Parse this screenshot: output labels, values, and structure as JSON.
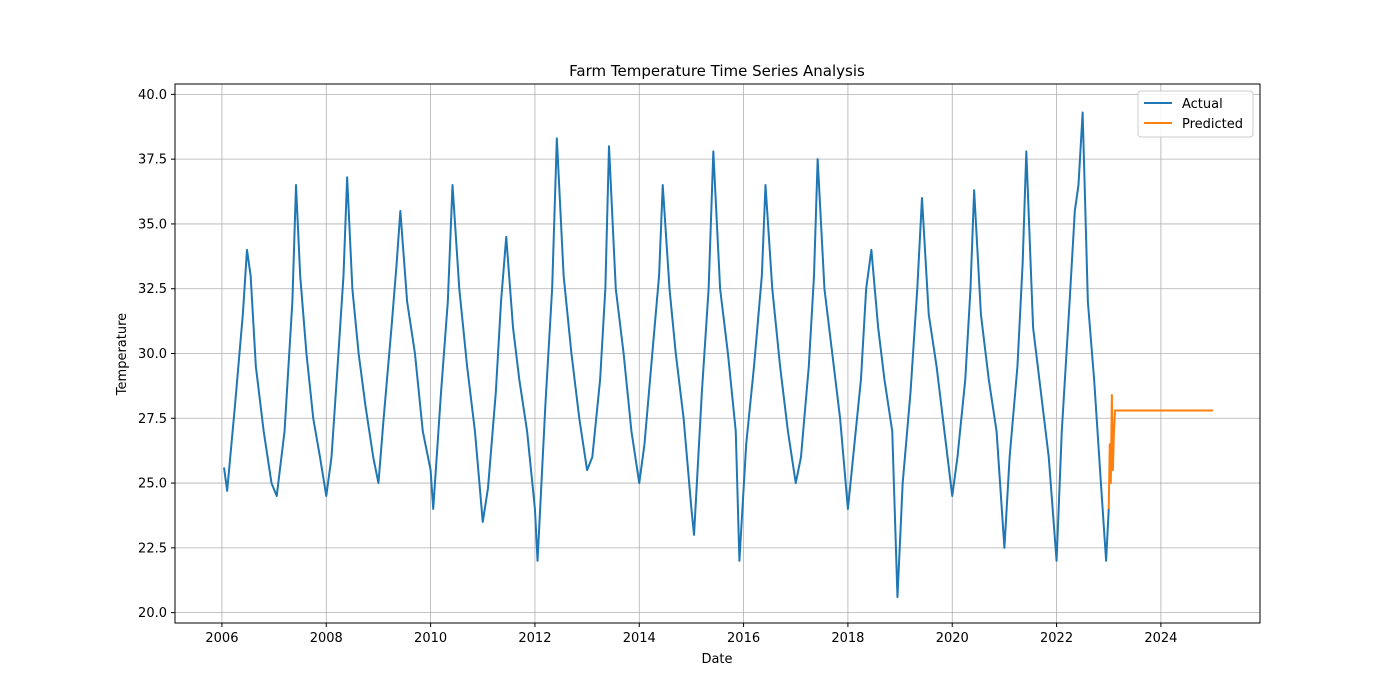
{
  "chart_data": {
    "type": "line",
    "title": "Farm Temperature Time Series Analysis",
    "xlabel": "Date",
    "ylabel": "Temperature",
    "xlim": [
      2005.1,
      2025.9
    ],
    "ylim": [
      19.6,
      40.4
    ],
    "x_ticks": [
      2006,
      2008,
      2010,
      2012,
      2014,
      2016,
      2018,
      2020,
      2022,
      2024
    ],
    "x_tick_labels": [
      "2006",
      "2008",
      "2010",
      "2012",
      "2014",
      "2016",
      "2018",
      "2020",
      "2022",
      "2024"
    ],
    "y_ticks": [
      20.0,
      22.5,
      25.0,
      27.5,
      30.0,
      32.5,
      35.0,
      37.5,
      40.0
    ],
    "y_tick_labels": [
      "20.0",
      "22.5",
      "25.0",
      "27.5",
      "30.0",
      "32.5",
      "35.0",
      "37.5",
      "40.0"
    ],
    "grid": true,
    "legend": {
      "position": "top-right",
      "entries": [
        "Actual",
        "Predicted"
      ]
    },
    "series": [
      {
        "name": "Actual",
        "color": "#1f77b4",
        "x": [
          2006.04,
          2006.1,
          2006.25,
          2006.4,
          2006.48,
          2006.55,
          2006.65,
          2006.8,
          2006.95,
          2007.05,
          2007.2,
          2007.35,
          2007.42,
          2007.5,
          2007.62,
          2007.75,
          2007.88,
          2008.0,
          2008.1,
          2008.2,
          2008.33,
          2008.4,
          2008.5,
          2008.62,
          2008.75,
          2008.9,
          2009.0,
          2009.1,
          2009.25,
          2009.35,
          2009.42,
          2009.55,
          2009.7,
          2009.85,
          2010.0,
          2010.05,
          2010.2,
          2010.33,
          2010.42,
          2010.55,
          2010.7,
          2010.85,
          2011.0,
          2011.1,
          2011.25,
          2011.35,
          2011.45,
          2011.58,
          2011.7,
          2011.85,
          2012.0,
          2012.05,
          2012.2,
          2012.33,
          2012.42,
          2012.55,
          2012.7,
          2012.85,
          2013.0,
          2013.1,
          2013.25,
          2013.35,
          2013.42,
          2013.55,
          2013.7,
          2013.85,
          2014.0,
          2014.1,
          2014.25,
          2014.38,
          2014.45,
          2014.58,
          2014.7,
          2014.85,
          2015.0,
          2015.05,
          2015.2,
          2015.33,
          2015.42,
          2015.55,
          2015.7,
          2015.85,
          2015.92,
          2016.05,
          2016.2,
          2016.35,
          2016.42,
          2016.55,
          2016.7,
          2016.85,
          2017.0,
          2017.1,
          2017.25,
          2017.35,
          2017.42,
          2017.55,
          2017.7,
          2017.85,
          2018.0,
          2018.1,
          2018.25,
          2018.35,
          2018.45,
          2018.58,
          2018.7,
          2018.85,
          2018.95,
          2019.05,
          2019.2,
          2019.33,
          2019.42,
          2019.55,
          2019.7,
          2019.85,
          2020.0,
          2020.1,
          2020.25,
          2020.35,
          2020.42,
          2020.55,
          2020.7,
          2020.85,
          2021.0,
          2021.1,
          2021.25,
          2021.35,
          2021.42,
          2021.55,
          2021.7,
          2021.85,
          2022.0,
          2022.1,
          2022.25,
          2022.35,
          2022.42,
          2022.5,
          2022.6,
          2022.72,
          2022.85,
          2022.95,
          2023.0
        ],
        "y": [
          25.6,
          24.7,
          28.0,
          31.5,
          34.0,
          33.0,
          29.5,
          27.0,
          25.0,
          24.5,
          27.0,
          32.0,
          36.5,
          33.0,
          30.0,
          27.5,
          26.0,
          24.5,
          26.0,
          29.0,
          33.0,
          36.8,
          32.5,
          30.0,
          28.0,
          26.0,
          25.0,
          27.5,
          31.0,
          33.5,
          35.5,
          32.0,
          30.0,
          27.0,
          25.5,
          24.0,
          28.5,
          32.0,
          36.5,
          32.5,
          29.5,
          27.0,
          23.5,
          24.8,
          28.5,
          32.0,
          34.5,
          31.0,
          29.0,
          27.0,
          24.0,
          22.0,
          28.0,
          32.5,
          38.3,
          33.0,
          30.0,
          27.5,
          25.5,
          26.0,
          29.0,
          32.5,
          38.0,
          32.5,
          30.0,
          27.0,
          25.0,
          26.5,
          30.0,
          33.0,
          36.5,
          32.5,
          30.0,
          27.5,
          24.0,
          23.0,
          28.5,
          32.5,
          37.8,
          32.5,
          30.0,
          27.0,
          22.0,
          26.5,
          29.5,
          33.0,
          36.5,
          32.5,
          29.5,
          27.0,
          25.0,
          26.0,
          29.5,
          33.0,
          37.5,
          32.5,
          30.0,
          27.5,
          24.0,
          26.0,
          29.0,
          32.5,
          34.0,
          31.0,
          29.0,
          27.0,
          20.6,
          25.0,
          28.5,
          32.5,
          36.0,
          31.5,
          29.5,
          27.0,
          24.5,
          26.0,
          29.0,
          32.5,
          36.3,
          31.5,
          29.0,
          27.0,
          22.5,
          26.0,
          29.5,
          33.5,
          37.8,
          31.0,
          28.5,
          26.0,
          22.0,
          27.0,
          32.0,
          35.5,
          36.5,
          39.3,
          32.0,
          29.0,
          25.0,
          22.0,
          24.0
        ]
      },
      {
        "name": "Predicted",
        "color": "#ff7f0e",
        "x": [
          2023.0,
          2023.02,
          2023.04,
          2023.06,
          2023.08,
          2023.1,
          2023.12,
          2023.15,
          2024.0,
          2025.0
        ],
        "y": [
          24.0,
          26.5,
          25.0,
          28.4,
          25.5,
          27.0,
          27.8,
          27.8,
          27.8,
          27.8
        ]
      }
    ]
  }
}
